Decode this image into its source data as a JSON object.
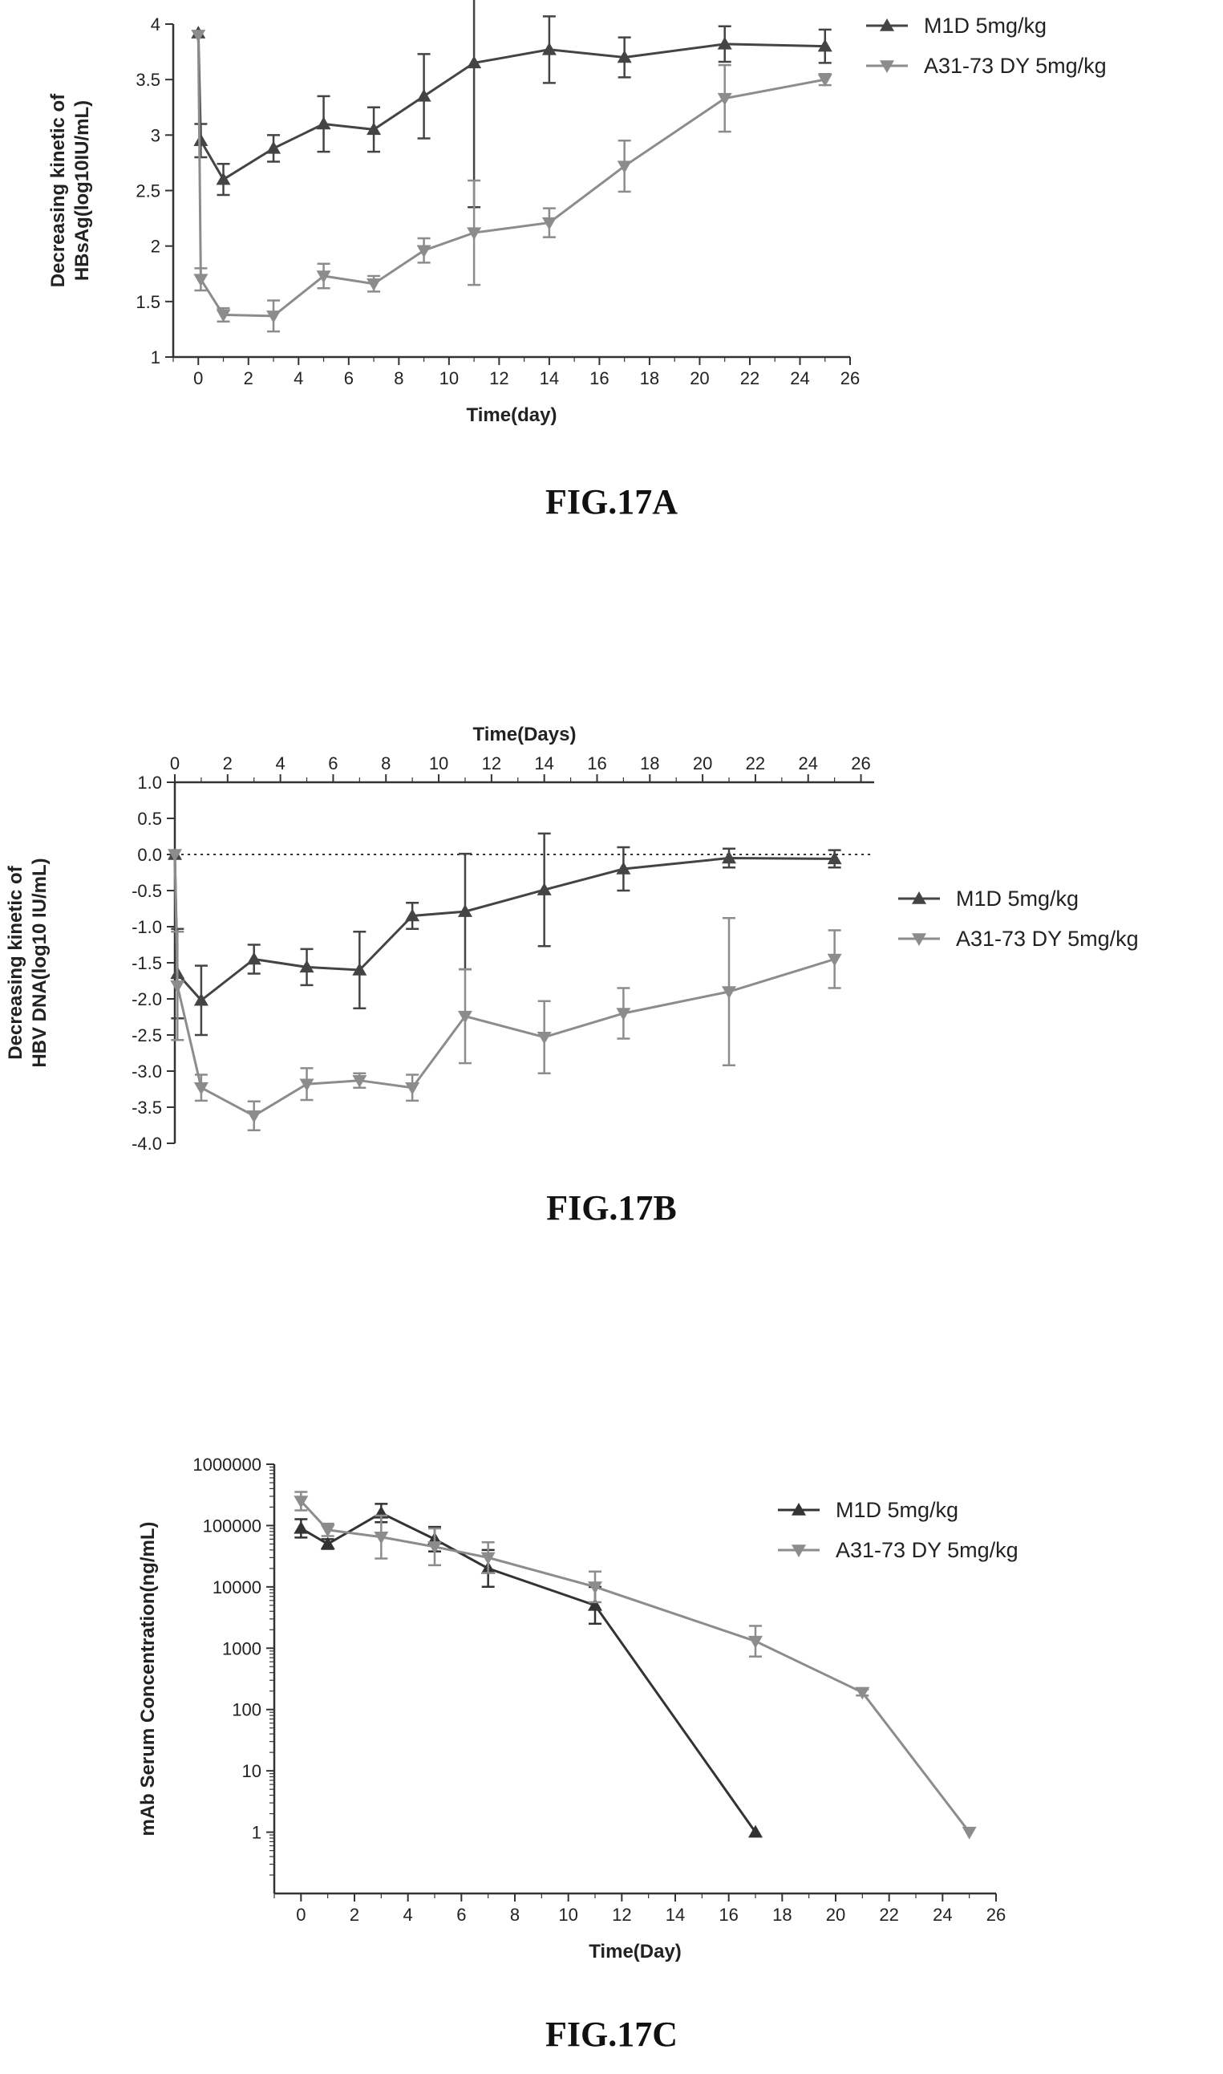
{
  "figures": [
    {
      "caption": "FIG.17A"
    },
    {
      "caption": "FIG.17B"
    },
    {
      "caption": "FIG.17C"
    }
  ],
  "chart_data": [
    {
      "type": "line",
      "title": "",
      "xlabel": "Time(day)",
      "ylabel_lines": [
        "Decreasing kinetic of",
        "HBsAg(log10IU/mL)"
      ],
      "xlim": [
        -1,
        26
      ],
      "ylim": [
        1,
        4
      ],
      "x_ticks": [
        0,
        2,
        4,
        6,
        8,
        10,
        12,
        14,
        16,
        18,
        20,
        22,
        24,
        26
      ],
      "y_ticks": [
        1,
        1.5,
        2,
        2.5,
        3,
        3.5,
        4
      ],
      "y_tick_labels": [
        "1",
        "1.5",
        "2",
        "2.5",
        "3",
        "3.5",
        "4"
      ],
      "x_axis_position": "bottom",
      "legend_position": "top-right",
      "series": [
        {
          "name": "M1D 5mg/kg",
          "color": "#444444",
          "marker": "triangle-up",
          "x": [
            0,
            0.1,
            1,
            3,
            5,
            7,
            9,
            11,
            14,
            17,
            21,
            25
          ],
          "y": [
            3.92,
            2.95,
            2.6,
            2.88,
            3.1,
            3.05,
            3.35,
            3.65,
            3.77,
            3.7,
            3.82,
            3.8
          ],
          "err": [
            0,
            0.15,
            0.14,
            0.12,
            0.25,
            0.2,
            0.38,
            1.3,
            0.3,
            0.18,
            0.16,
            0.15
          ]
        },
        {
          "name": "A31-73 DY 5mg/kg",
          "color": "#8c8c8c",
          "marker": "triangle-down",
          "x": [
            0,
            0.1,
            1,
            3,
            5,
            7,
            9,
            11,
            14,
            17,
            21,
            25
          ],
          "y": [
            3.9,
            1.7,
            1.38,
            1.37,
            1.73,
            1.66,
            1.96,
            2.12,
            2.21,
            2.72,
            3.33,
            3.5
          ],
          "err": [
            0,
            0.1,
            0.06,
            0.14,
            0.11,
            0.07,
            0.11,
            0.47,
            0.13,
            0.23,
            0.3,
            0.05
          ]
        }
      ]
    },
    {
      "type": "line",
      "title": "",
      "xlabel": "Time(Days)",
      "ylabel_lines": [
        "Decreasing kinetic of",
        "HBV DNA(log10 IU/mL)"
      ],
      "xlim": [
        0,
        26.5
      ],
      "ylim": [
        -4.0,
        1.0
      ],
      "x_ticks": [
        0,
        2,
        4,
        6,
        8,
        10,
        12,
        14,
        16,
        18,
        20,
        22,
        24,
        26
      ],
      "y_ticks": [
        1.0,
        0.5,
        0.0,
        -0.5,
        -1.0,
        -1.5,
        -2.0,
        -2.5,
        -3.0,
        -3.5,
        -4.0
      ],
      "y_tick_labels": [
        "1.0",
        "0.5",
        "0.0",
        "-0.5",
        "-1.0",
        "-1.5",
        "-2.0",
        "-2.5",
        "-3.0",
        "-3.5",
        "-4.0"
      ],
      "x_axis_position": "top",
      "reference_line": 0,
      "legend_position": "right",
      "series": [
        {
          "name": "M1D 5mg/kg",
          "color": "#444444",
          "marker": "triangle-up",
          "x": [
            0,
            0.1,
            1,
            3,
            5,
            7,
            9,
            11,
            14,
            17,
            21,
            25
          ],
          "y": [
            0,
            -1.65,
            -2.02,
            -1.45,
            -1.56,
            -1.6,
            -0.85,
            -0.79,
            -0.49,
            -0.2,
            -0.05,
            -0.06
          ],
          "err": [
            0,
            0.62,
            0.48,
            0.2,
            0.25,
            0.53,
            0.18,
            0.8,
            0.78,
            0.3,
            0.13,
            0.12
          ]
        },
        {
          "name": "A31-73 DY 5mg/kg",
          "color": "#8c8c8c",
          "marker": "triangle-down",
          "x": [
            0,
            0.1,
            1,
            3,
            5,
            7,
            9,
            11,
            14,
            17,
            21,
            25
          ],
          "y": [
            0,
            -1.82,
            -3.23,
            -3.62,
            -3.18,
            -3.13,
            -3.23,
            -2.24,
            -2.53,
            -2.2,
            -1.9,
            -1.45
          ],
          "err": [
            0,
            0.75,
            0.18,
            0.2,
            0.22,
            0.1,
            0.18,
            0.65,
            0.5,
            0.35,
            1.02,
            0.4
          ]
        }
      ]
    },
    {
      "type": "line",
      "title": "",
      "xlabel": "Time(Day)",
      "ylabel_lines": [
        "mAb Serum Concentration(ng/mL)"
      ],
      "y_scale": "log",
      "xlim": [
        -1,
        26
      ],
      "ylim_log10": [
        -1,
        6
      ],
      "x_ticks": [
        0,
        2,
        4,
        6,
        8,
        10,
        12,
        14,
        16,
        18,
        20,
        22,
        24,
        26
      ],
      "y_ticks_log10": [
        0,
        1,
        2,
        3,
        4,
        5,
        6
      ],
      "y_tick_labels": [
        "1",
        "10",
        "100",
        "1000",
        "10000",
        "100000",
        "1000000"
      ],
      "x_axis_position": "bottom",
      "legend_position": "top-right",
      "series": [
        {
          "name": "M1D 5mg/kg",
          "color": "#333333",
          "marker": "triangle-up",
          "x": [
            0,
            1,
            3,
            5,
            7,
            11,
            17
          ],
          "y": [
            90000,
            50000,
            160000,
            60000,
            20000,
            5000,
            1
          ],
          "err_log10": [
            0.15,
            0.08,
            0.15,
            0.2,
            0.3,
            0.3,
            0
          ]
        },
        {
          "name": "A31-73 DY 5mg/kg",
          "color": "#8c8c8c",
          "marker": "triangle-down",
          "x": [
            0,
            1,
            3,
            5,
            7,
            11,
            17,
            21,
            25
          ],
          "y": [
            250000,
            85000,
            65000,
            45000,
            30000,
            10000,
            1300,
            190,
            1
          ],
          "err_log10": [
            0.15,
            0.1,
            0.35,
            0.3,
            0.25,
            0.25,
            0.25,
            0.05,
            0
          ]
        }
      ]
    }
  ]
}
